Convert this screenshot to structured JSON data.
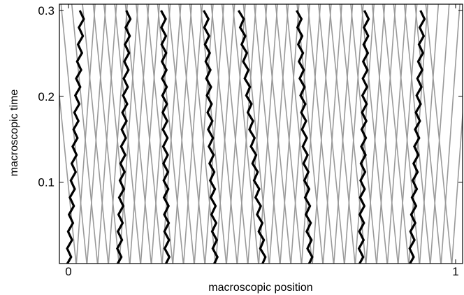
{
  "chart_data": {
    "type": "line",
    "title": "",
    "xlabel": "macroscopic position",
    "ylabel": "macroscopic time",
    "xlim": [
      -0.03,
      1.0
    ],
    "ylim": [
      0.0,
      0.31
    ],
    "x_ticks": [
      {
        "value": 0,
        "label": "0"
      },
      {
        "value": 1,
        "label": "1"
      }
    ],
    "y_ticks": [
      {
        "value": 0.1,
        "label": "0.1"
      },
      {
        "value": 0.2,
        "label": "0.2"
      },
      {
        "value": 0.3,
        "label": "0.3"
      }
    ],
    "grid": false,
    "legend": "none",
    "series_colors": {
      "background_particles": "#9a9a9a",
      "tagged_particles": "#000000"
    },
    "zigzag_period": 0.0195,
    "zigzag_amplitude": 0.0115,
    "fan_lines": {
      "x_start": 0.02,
      "x_end": 0.99,
      "count": 36,
      "slope_left": 0.22,
      "slope_right": 0.16
    },
    "highlighted_trajectories": [
      {
        "x_bottom": 0.0,
        "x_top": 0.035
      },
      {
        "x_bottom": 0.13,
        "x_top": 0.155
      },
      {
        "x_bottom": 0.255,
        "x_top": 0.245
      },
      {
        "x_bottom": 0.38,
        "x_top": 0.355
      },
      {
        "x_bottom": 0.505,
        "x_top": 0.445
      },
      {
        "x_bottom": 0.625,
        "x_top": 0.595
      },
      {
        "x_bottom": 0.755,
        "x_top": 0.77
      },
      {
        "x_bottom": 0.885,
        "x_top": 0.915
      }
    ]
  }
}
